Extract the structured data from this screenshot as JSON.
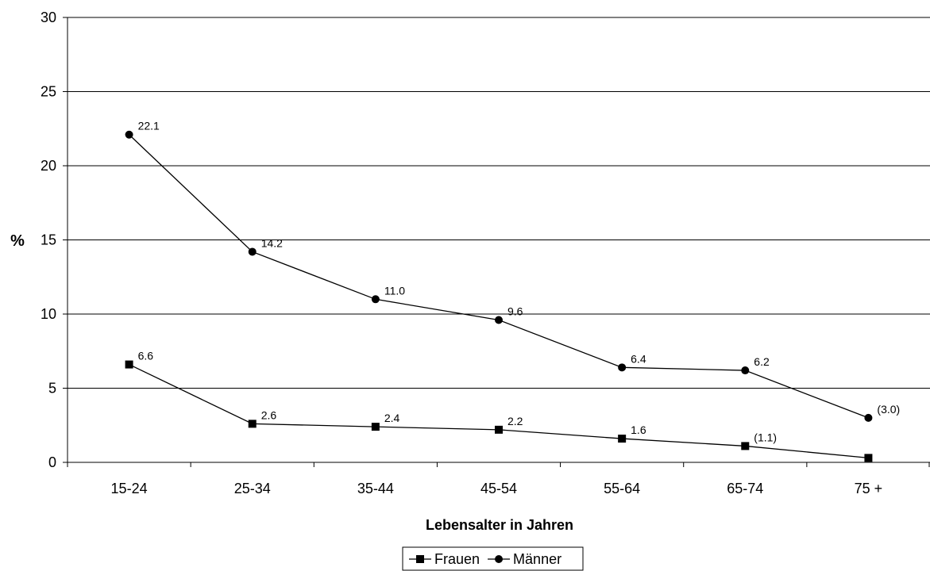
{
  "chart_data": {
    "type": "line",
    "xlabel": "Lebensalter in Jahren",
    "ylabel": "%",
    "categories": [
      "15-24",
      "25-34",
      "35-44",
      "45-54",
      "55-64",
      "65-74",
      "75 +"
    ],
    "ylim": [
      0,
      30
    ],
    "yticks": [
      "0",
      "5",
      "10",
      "15",
      "20",
      "25",
      "30"
    ],
    "grid": true,
    "legend_position": "bottom",
    "series": [
      {
        "name": "Frauen",
        "marker": "square",
        "values": [
          6.6,
          2.6,
          2.4,
          2.2,
          1.6,
          1.1,
          0.3
        ],
        "labels": [
          "6.6",
          "2.6",
          "2.4",
          "2.2",
          "1.6",
          "(1.1)",
          ""
        ]
      },
      {
        "name": "Männer",
        "marker": "circle",
        "values": [
          22.1,
          14.2,
          11.0,
          9.6,
          6.4,
          6.2,
          3.0
        ],
        "labels": [
          "22.1",
          "14.2",
          "11.0",
          "9.6",
          "6.4",
          "6.2",
          "(3.0)"
        ]
      }
    ],
    "colors": {
      "line": "#000000",
      "grid": "#000000",
      "background": "#ffffff"
    }
  }
}
